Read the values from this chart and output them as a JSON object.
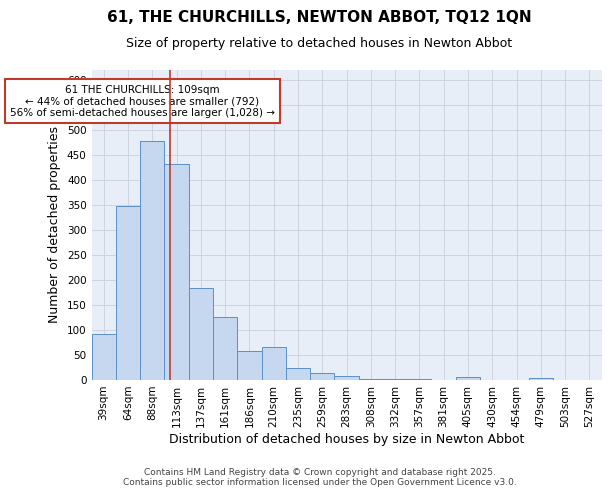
{
  "title_line1": "61, THE CHURCHILLS, NEWTON ABBOT, TQ12 1QN",
  "title_line2": "Size of property relative to detached houses in Newton Abbot",
  "xlabel": "Distribution of detached houses by size in Newton Abbot",
  "ylabel": "Number of detached properties",
  "categories": [
    "39sqm",
    "64sqm",
    "88sqm",
    "113sqm",
    "137sqm",
    "161sqm",
    "186sqm",
    "210sqm",
    "235sqm",
    "259sqm",
    "283sqm",
    "308sqm",
    "332sqm",
    "357sqm",
    "381sqm",
    "405sqm",
    "430sqm",
    "454sqm",
    "479sqm",
    "503sqm",
    "527sqm"
  ],
  "values": [
    92,
    348,
    478,
    432,
    183,
    125,
    57,
    65,
    23,
    13,
    7,
    2,
    1,
    1,
    0,
    5,
    0,
    0,
    4,
    0,
    0
  ],
  "bar_color": "#c5d8f0",
  "bar_edge_color": "#5b8fc7",
  "grid_color": "#c8d0dc",
  "background_color": "#e8eef8",
  "vline_x_index": 2.72,
  "vline_color": "#c0392b",
  "annotation_text": "61 THE CHURCHILLS: 109sqm\n← 44% of detached houses are smaller (792)\n56% of semi-detached houses are larger (1,028) →",
  "annotation_box_color": "#ffffff",
  "annotation_box_edge": "#c0392b",
  "ylim": [
    0,
    620
  ],
  "yticks": [
    0,
    50,
    100,
    150,
    200,
    250,
    300,
    350,
    400,
    450,
    500,
    550,
    600
  ],
  "footer_text": "Contains HM Land Registry data © Crown copyright and database right 2025.\nContains public sector information licensed under the Open Government Licence v3.0.",
  "title_fontsize": 11,
  "subtitle_fontsize": 9,
  "axis_label_fontsize": 9,
  "tick_fontsize": 7.5,
  "annotation_fontsize": 7.5,
  "footer_fontsize": 6.5
}
